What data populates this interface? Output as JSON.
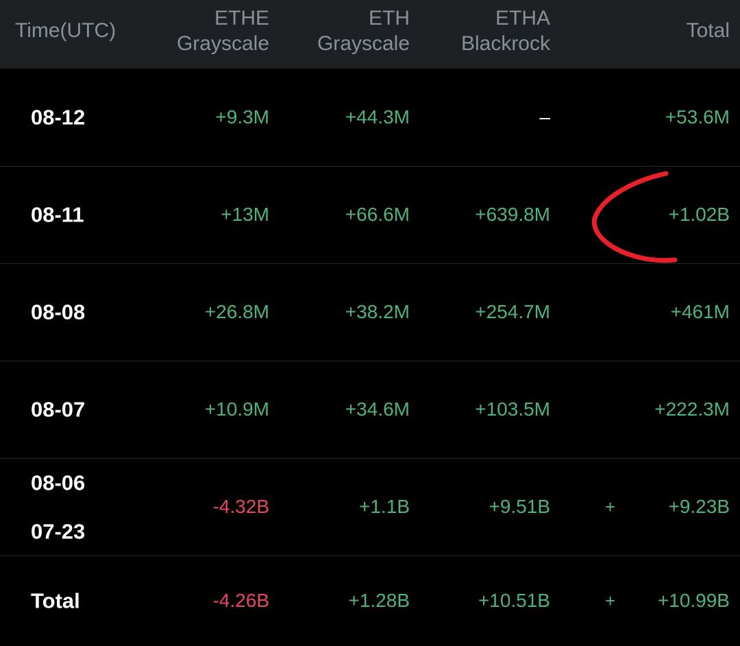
{
  "table": {
    "header": [
      "Time(UTC)",
      {
        "ticker": "ETHE",
        "issuer": "Grayscale"
      },
      {
        "ticker": "ETH",
        "issuer": "Grayscale"
      },
      {
        "ticker": "ETHA",
        "issuer": "Blackrock"
      },
      "Total"
    ],
    "rows": [
      {
        "time": [
          "08-12"
        ],
        "values": [
          "+9.3M",
          "+44.3M",
          "–",
          "+53.6M"
        ]
      },
      {
        "time": [
          "08-11"
        ],
        "values": [
          "+13M",
          "+66.6M",
          "+639.8M",
          "+1.02B"
        ]
      },
      {
        "time": [
          "08-08"
        ],
        "values": [
          "+26.8M",
          "+38.2M",
          "+254.7M",
          "+461M"
        ]
      },
      {
        "time": [
          "08-07"
        ],
        "values": [
          "+10.9M",
          "+34.6M",
          "+103.5M",
          "+222.3M"
        ]
      },
      {
        "time": [
          "08-06",
          "07-23"
        ],
        "values": [
          "-4.32B",
          "+1.1B",
          "+9.51B",
          "+9.23B"
        ],
        "marker": "+"
      },
      {
        "time": [
          "Total"
        ],
        "values": [
          "-4.26B",
          "+1.28B",
          "+10.51B",
          "+10.99B"
        ],
        "marker": "+"
      }
    ]
  }
}
